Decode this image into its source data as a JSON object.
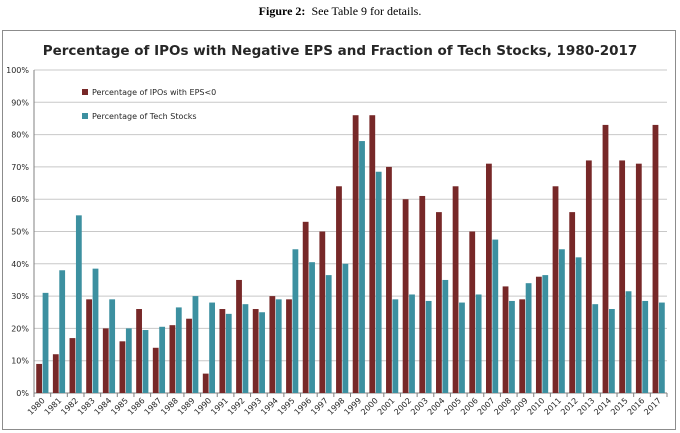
{
  "caption": {
    "prefix": "Figure 2:",
    "text": "See Table 9 for details."
  },
  "colors": {
    "eps": "#772828",
    "tech": "#3c90a0",
    "grid": "#c8c8c8",
    "axis": "#808080"
  },
  "chart_data": {
    "type": "bar",
    "title": "Percentage of IPOs with Negative EPS and Fraction of Tech Stocks, 1980-2017",
    "xlabel": "",
    "ylabel": "",
    "ylim": [
      0,
      100
    ],
    "yticks": [
      "0%",
      "10%",
      "20%",
      "30%",
      "40%",
      "50%",
      "60%",
      "70%",
      "80%",
      "90%",
      "100%"
    ],
    "grid": true,
    "legend_position": "top-left",
    "categories": [
      "1980",
      "1981",
      "1982",
      "1983",
      "1984",
      "1985",
      "1986",
      "1987",
      "1988",
      "1989",
      "1990",
      "1991",
      "1992",
      "1993",
      "1994",
      "1995",
      "1996",
      "1997",
      "1998",
      "1999",
      "2000",
      "2001",
      "2002",
      "2003",
      "2004",
      "2005",
      "2006",
      "2007",
      "2008",
      "2009",
      "2010",
      "2011",
      "2012",
      "2013",
      "2014",
      "2015",
      "2016",
      "2017"
    ],
    "series": [
      {
        "name": "Percentage of IPOs with EPS<0",
        "color": "#772828",
        "values": [
          9,
          12,
          17,
          29,
          20,
          16,
          26,
          14,
          21,
          23,
          6,
          26,
          35,
          26,
          30,
          29,
          53,
          50,
          64,
          86,
          86,
          70,
          60,
          61,
          56,
          64,
          50,
          71,
          33,
          29,
          36,
          64,
          56,
          72,
          83,
          72,
          71,
          83
        ]
      },
      {
        "name": "Percentage of Tech Stocks",
        "color": "#3c90a0",
        "values": [
          31,
          38,
          55,
          38.5,
          29,
          20,
          19.5,
          20.5,
          26.5,
          30,
          28,
          24.5,
          27.5,
          25,
          29,
          44.5,
          40.5,
          36.5,
          40,
          78,
          68.5,
          29,
          30.5,
          28.5,
          35,
          28,
          30.5,
          47.5,
          28.5,
          34,
          36.5,
          44.5,
          42,
          27.5,
          26,
          31.5,
          28.5,
          28
        ]
      }
    ]
  }
}
